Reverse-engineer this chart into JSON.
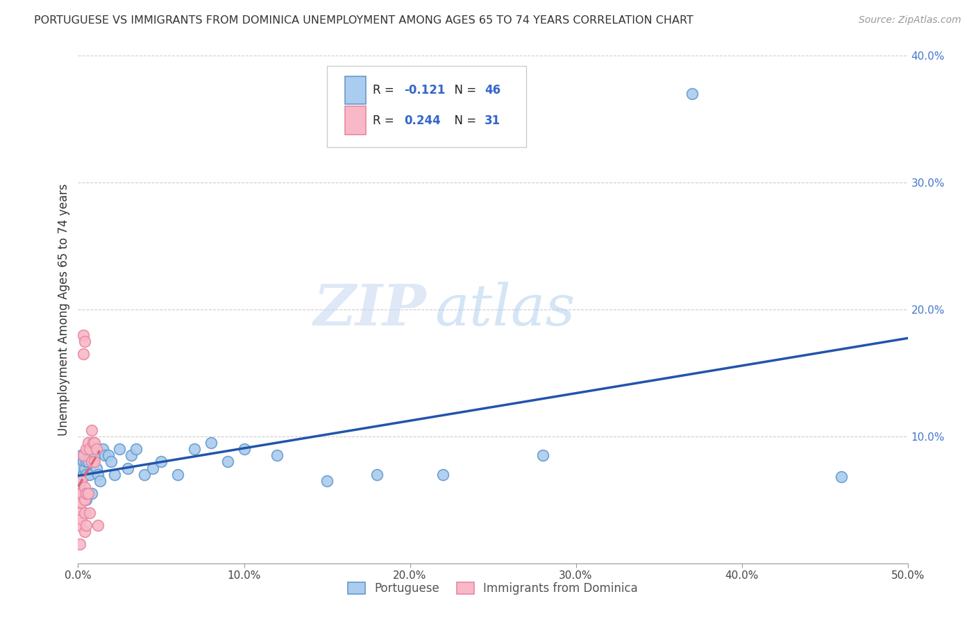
{
  "title": "PORTUGUESE VS IMMIGRANTS FROM DOMINICA UNEMPLOYMENT AMONG AGES 65 TO 74 YEARS CORRELATION CHART",
  "source": "Source: ZipAtlas.com",
  "ylabel": "Unemployment Among Ages 65 to 74 years",
  "xlim": [
    0.0,
    0.5
  ],
  "ylim": [
    0.0,
    0.4
  ],
  "xticks": [
    0.0,
    0.1,
    0.2,
    0.3,
    0.4,
    0.5
  ],
  "yticks": [
    0.0,
    0.1,
    0.2,
    0.3,
    0.4
  ],
  "xtick_labels": [
    "0.0%",
    "10.0%",
    "20.0%",
    "30.0%",
    "40.0%",
    "50.0%"
  ],
  "ytick_labels": [
    "",
    "10.0%",
    "20.0%",
    "30.0%",
    "40.0%"
  ],
  "legend_R1": "-0.121",
  "legend_N1": "46",
  "legend_R2": "0.244",
  "legend_N2": "31",
  "blue_face": "#aaccee",
  "blue_edge": "#6699cc",
  "pink_face": "#f8b8c8",
  "pink_edge": "#e888a0",
  "blue_line": "#2255aa",
  "pink_line": "#dd6677",
  "watermark_zip": "ZIP",
  "watermark_atlas": "atlas",
  "portuguese_x": [
    0.001,
    0.001,
    0.002,
    0.002,
    0.002,
    0.003,
    0.003,
    0.003,
    0.004,
    0.004,
    0.004,
    0.005,
    0.005,
    0.005,
    0.006,
    0.007,
    0.008,
    0.009,
    0.01,
    0.011,
    0.012,
    0.013,
    0.015,
    0.016,
    0.018,
    0.02,
    0.022,
    0.025,
    0.03,
    0.032,
    0.035,
    0.04,
    0.045,
    0.05,
    0.06,
    0.07,
    0.08,
    0.09,
    0.1,
    0.12,
    0.15,
    0.18,
    0.22,
    0.28,
    0.37,
    0.46
  ],
  "portuguese_y": [
    0.075,
    0.06,
    0.085,
    0.065,
    0.05,
    0.08,
    0.07,
    0.055,
    0.085,
    0.075,
    0.055,
    0.08,
    0.07,
    0.05,
    0.08,
    0.07,
    0.055,
    0.08,
    0.085,
    0.075,
    0.07,
    0.065,
    0.09,
    0.085,
    0.085,
    0.08,
    0.07,
    0.09,
    0.075,
    0.085,
    0.09,
    0.07,
    0.075,
    0.08,
    0.07,
    0.09,
    0.095,
    0.08,
    0.09,
    0.085,
    0.065,
    0.07,
    0.07,
    0.085,
    0.37,
    0.068
  ],
  "dominica_x": [
    0.001,
    0.001,
    0.001,
    0.001,
    0.001,
    0.002,
    0.002,
    0.002,
    0.002,
    0.003,
    0.003,
    0.003,
    0.004,
    0.004,
    0.004,
    0.004,
    0.004,
    0.005,
    0.005,
    0.005,
    0.006,
    0.006,
    0.007,
    0.007,
    0.008,
    0.008,
    0.009,
    0.01,
    0.01,
    0.011,
    0.012
  ],
  "dominica_y": [
    0.055,
    0.048,
    0.04,
    0.03,
    0.015,
    0.065,
    0.055,
    0.048,
    0.035,
    0.18,
    0.165,
    0.085,
    0.175,
    0.06,
    0.05,
    0.04,
    0.025,
    0.09,
    0.055,
    0.03,
    0.095,
    0.055,
    0.09,
    0.04,
    0.105,
    0.08,
    0.095,
    0.095,
    0.08,
    0.09,
    0.03
  ]
}
